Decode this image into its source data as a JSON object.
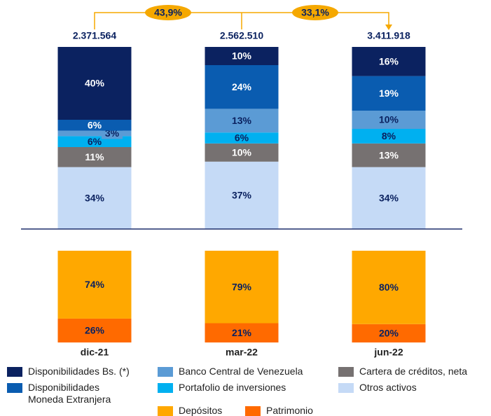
{
  "chart_data": [
    {
      "type": "stacked_bar",
      "categories": [
        "dic-21",
        "mar-22",
        "jun-22"
      ],
      "ylim": [
        0,
        100
      ],
      "totals": [
        {
          "value": 2371564,
          "label": "2.371.564"
        },
        {
          "value": 2562510,
          "label": "2.562.510"
        },
        {
          "value": 3411918,
          "label": "3.411.918"
        }
      ],
      "growth": [
        {
          "value": 43.9,
          "label": "43,9%"
        },
        {
          "value": 33.1,
          "label": "33,1%"
        }
      ],
      "series": [
        {
          "name": "Otros activos",
          "color": "#c5daf6",
          "label_color": "#0b2260",
          "values": [
            34,
            37,
            34
          ],
          "value_labels": [
            "34%",
            "37%",
            "34%"
          ]
        },
        {
          "name": "Cartera de créditos, neta",
          "color": "#767171",
          "label_color": "#ffffff",
          "values": [
            11,
            10,
            13
          ],
          "value_labels": [
            "11%",
            "10%",
            "13%"
          ]
        },
        {
          "name": "Portafolio de inversiones",
          "color": "#00b0f0",
          "label_color": "#0b2260",
          "values": [
            6,
            6,
            8
          ],
          "value_labels": [
            "6%",
            "6%",
            "8%"
          ]
        },
        {
          "name": "Banco Central de Venezuela",
          "color": "#5b9bd5",
          "label_color": "#0b2260",
          "values": [
            3,
            13,
            10
          ],
          "value_labels": [
            "3%",
            "13%",
            "10%"
          ]
        },
        {
          "name": "Disponibilidades Moneda Extranjera",
          "color": "#0a5cb0",
          "label_color": "#ffffff",
          "values": [
            6,
            24,
            19
          ],
          "value_labels": [
            "6%",
            "24%",
            "19%"
          ]
        },
        {
          "name": "Disponibilidades Bs. (*)",
          "color": "#0b2260",
          "label_color": "#ffffff",
          "values": [
            40,
            10,
            16
          ],
          "value_labels": [
            "40%",
            "10%",
            "16%"
          ]
        }
      ]
    },
    {
      "type": "stacked_bar",
      "categories": [
        "dic-21",
        "mar-22",
        "jun-22"
      ],
      "ylim": [
        0,
        100
      ],
      "series": [
        {
          "name": "Patrimonio",
          "color": "#ff6a00",
          "label_color": "#0b2260",
          "values": [
            26,
            21,
            20
          ],
          "value_labels": [
            "26%",
            "21%",
            "20%"
          ]
        },
        {
          "name": "Depósitos",
          "color": "#ffa800",
          "label_color": "#0b2260",
          "values": [
            74,
            79,
            80
          ],
          "value_labels": [
            "74%",
            "79%",
            "80%"
          ]
        }
      ]
    }
  ]
}
